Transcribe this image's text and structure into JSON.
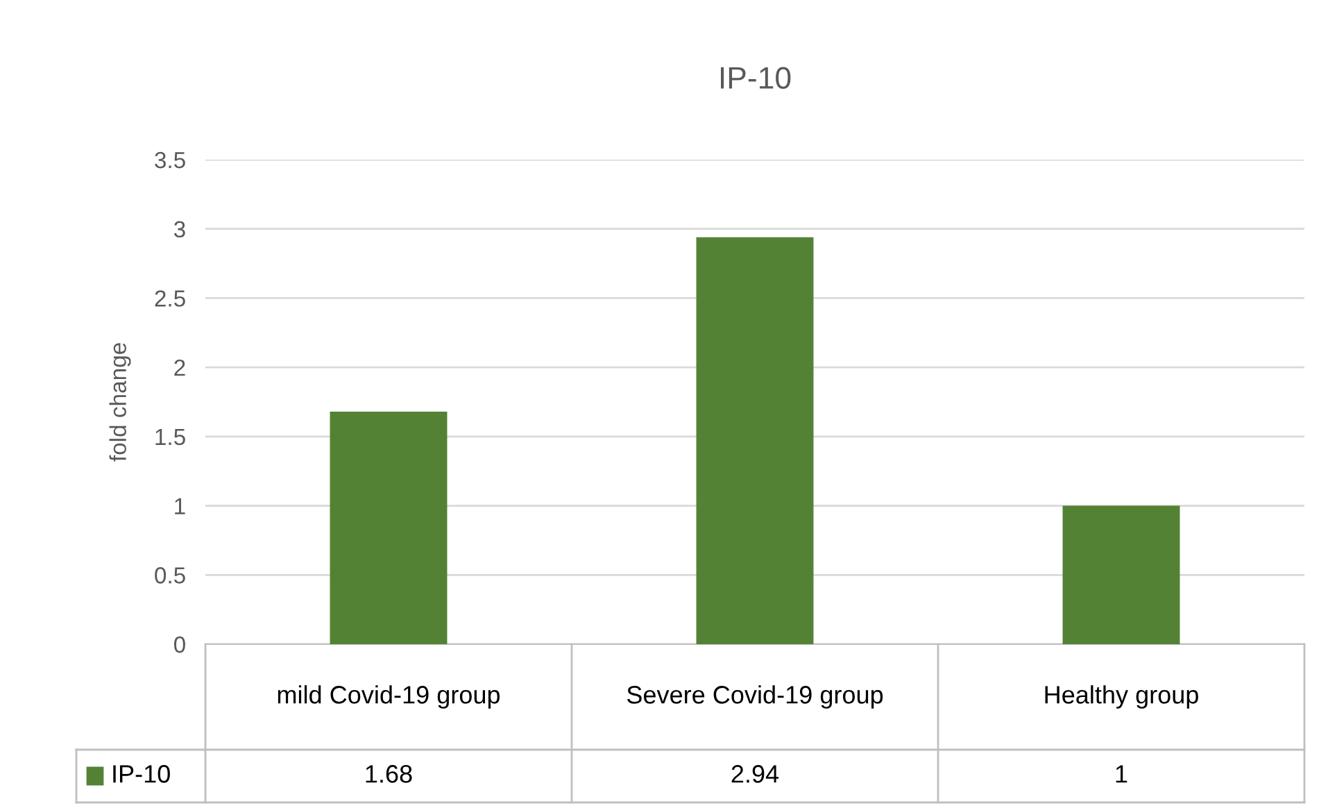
{
  "chart_data": {
    "type": "bar",
    "title": "IP-10",
    "ylabel": "fold change",
    "categories": [
      "mild Covid-19 group",
      "Severe Covid-19 group",
      "Healthy group"
    ],
    "series": [
      {
        "name": "IP-10",
        "color": "#548235",
        "values": [
          1.68,
          2.94,
          1
        ]
      }
    ],
    "ylim": [
      0,
      3.5
    ],
    "yticks": [
      0,
      0.5,
      1,
      1.5,
      2,
      2.5,
      3,
      3.5
    ],
    "grid": "y",
    "legend": "bottom",
    "data_labels": true
  }
}
